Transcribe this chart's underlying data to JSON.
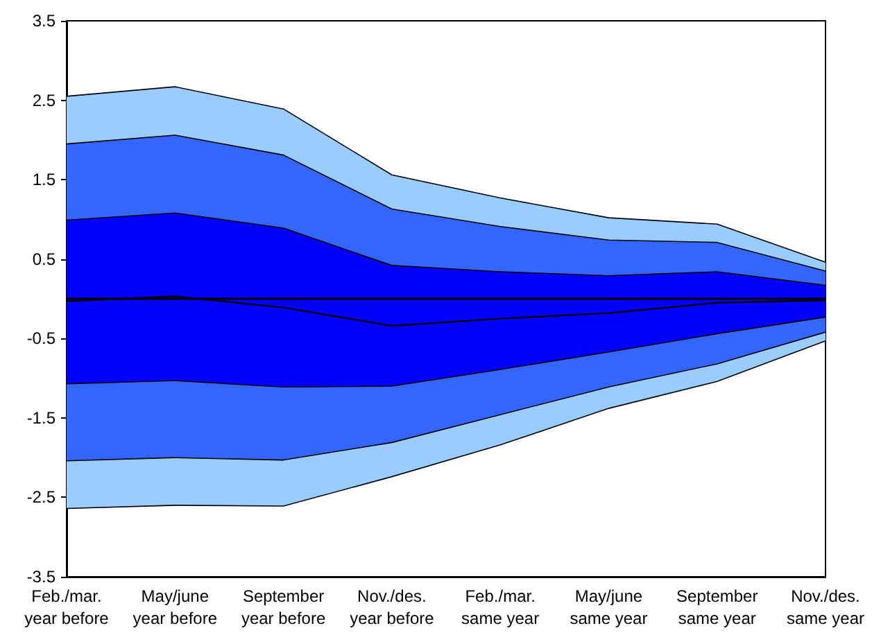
{
  "chart_data": {
    "type": "area",
    "categories": [
      "Feb./mar.\nyear before",
      "May/june\nyear before",
      "September\nyear before",
      "Nov./des.\nyear before",
      "Feb./mar.\nsame year",
      "May/june\nsame year",
      "September\nsame year",
      "Nov./des.\nsame year"
    ],
    "series": [
      {
        "color": "#99ccff",
        "values": [
          2.55,
          2.67,
          2.39,
          1.56,
          1.27,
          1.02,
          0.94,
          0.46
        ]
      },
      {
        "color": "#99ccff",
        "values": [
          -2.64,
          -2.6,
          -2.61,
          -2.24,
          -1.84,
          -1.38,
          -1.04,
          -0.53
        ]
      },
      {
        "color": "#3366ff",
        "values": [
          1.95,
          2.06,
          1.81,
          1.13,
          0.91,
          0.74,
          0.71,
          0.35
        ]
      },
      {
        "color": "#3366ff",
        "values": [
          -2.04,
          -2.0,
          -2.03,
          -1.81,
          -1.46,
          -1.11,
          -0.82,
          -0.42
        ]
      },
      {
        "color": "#0000ff",
        "values": [
          0.99,
          1.08,
          0.89,
          0.42,
          0.34,
          0.29,
          0.34,
          0.17
        ]
      },
      {
        "color": "#0000ff",
        "values": [
          -1.07,
          -1.03,
          -1.11,
          -1.1,
          -0.89,
          -0.67,
          -0.44,
          -0.23
        ]
      },
      {
        "type": "line",
        "color": "#000000",
        "values": [
          -0.03,
          0.03,
          -0.11,
          -0.34,
          -0.25,
          -0.18,
          -0.05,
          -0.02
        ]
      }
    ],
    "ylim": [
      -3.5,
      3.5
    ],
    "yticks": [
      -3.5,
      -2.5,
      -1.5,
      -0.5,
      0.5,
      1.5,
      2.5,
      3.5
    ],
    "ref_lines": [
      {
        "axis": "y",
        "value": 0,
        "color": "#000000"
      }
    ],
    "grid": false,
    "marker": "none",
    "line_style": "solid"
  }
}
